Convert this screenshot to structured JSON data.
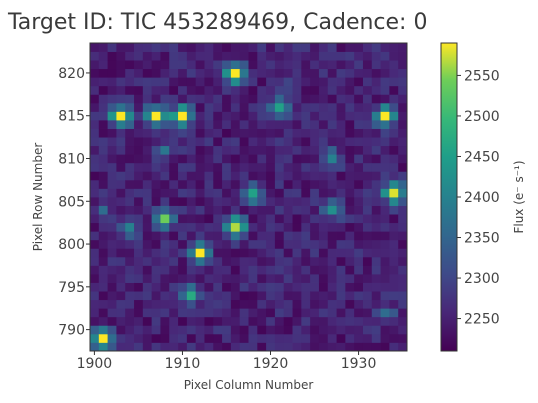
{
  "chart_data": {
    "type": "heatmap",
    "title": "Target ID: TIC 453289469, Cadence: 0",
    "xlabel": "Pixel Column Number",
    "ylabel": "Pixel Row Number",
    "colorbar_label": "Flux (e⁻ s⁻¹)",
    "xlim": [
      1900,
      1935
    ],
    "ylim": [
      788,
      823
    ],
    "x_ticks": [
      1900,
      1910,
      1920,
      1930
    ],
    "y_ticks": [
      790,
      795,
      800,
      805,
      810,
      815,
      820
    ],
    "colorbar_ticks": [
      2250,
      2300,
      2350,
      2400,
      2450,
      2500,
      2550
    ],
    "colorbar_range": [
      2210,
      2590
    ],
    "colormap": "viridis",
    "background_level": 2240,
    "sources": [
      {
        "column": 1903,
        "row": 815,
        "flux": 2590
      },
      {
        "column": 1910,
        "row": 815,
        "flux": 2590
      },
      {
        "column": 1907,
        "row": 815,
        "flux": 2560
      },
      {
        "column": 1916,
        "row": 820,
        "flux": 2580
      },
      {
        "column": 1912,
        "row": 799,
        "flux": 2590
      },
      {
        "column": 1916,
        "row": 802,
        "flux": 2570
      },
      {
        "column": 1934,
        "row": 806,
        "flux": 2590
      },
      {
        "column": 1908,
        "row": 803,
        "flux": 2520
      },
      {
        "column": 1901,
        "row": 789,
        "flux": 2570
      },
      {
        "column": 1933,
        "row": 815,
        "flux": 2560
      },
      {
        "column": 1918,
        "row": 806,
        "flux": 2450
      },
      {
        "column": 1921,
        "row": 816,
        "flux": 2420
      },
      {
        "column": 1911,
        "row": 794,
        "flux": 2430
      },
      {
        "column": 1927,
        "row": 804,
        "flux": 2380
      },
      {
        "column": 1927,
        "row": 810,
        "flux": 2370
      },
      {
        "column": 1904,
        "row": 802,
        "flux": 2360
      },
      {
        "column": 1908,
        "row": 811,
        "flux": 2350
      },
      {
        "column": 1933,
        "row": 792,
        "flux": 2340
      },
      {
        "column": 1901,
        "row": 804,
        "flux": 2320
      },
      {
        "column": 1922,
        "row": 819,
        "flux": 2300
      }
    ]
  }
}
